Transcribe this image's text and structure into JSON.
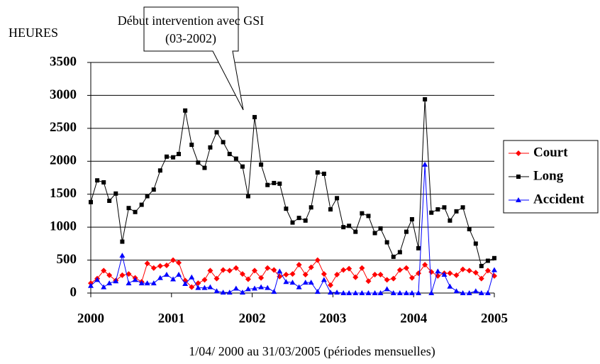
{
  "chart_data": {
    "type": "line",
    "annotation": [
      "Début intervention avec GSI",
      "(03-2002)"
    ],
    "ylabel": "HEURES",
    "xlabel": "1/04/ 2000 au 31/03/2005 (périodes mensuelles)",
    "x": [
      2000,
      2000.08,
      2000.16,
      2000.23,
      2000.31,
      2000.39,
      2000.47,
      2000.55,
      2000.63,
      2000.7,
      2000.78,
      2000.86,
      2000.94,
      2001.02,
      2001.09,
      2001.17,
      2001.25,
      2001.33,
      2001.41,
      2001.48,
      2001.56,
      2001.64,
      2001.72,
      2001.8,
      2001.88,
      2001.95,
      2002.03,
      2002.11,
      2002.19,
      2002.27,
      2002.34,
      2002.42,
      2002.5,
      2002.58,
      2002.66,
      2002.73,
      2002.81,
      2002.89,
      2002.97,
      2003.05,
      2003.13,
      2003.2,
      2003.28,
      2003.36,
      2003.44,
      2003.52,
      2003.59,
      2003.67,
      2003.75,
      2003.83,
      2003.91,
      2003.98,
      2004.06,
      2004.14,
      2004.22,
      2004.3,
      2004.38,
      2004.45,
      2004.53,
      2004.61,
      2004.69,
      2004.77,
      2004.84,
      2004.92,
      2005
    ],
    "series": [
      {
        "name": "Court",
        "color": "#ff0000",
        "marker": "diamond",
        "values": [
          150,
          220,
          340,
          270,
          190,
          270,
          290,
          230,
          170,
          450,
          380,
          410,
          420,
          500,
          460,
          190,
          90,
          150,
          200,
          340,
          220,
          350,
          340,
          380,
          290,
          210,
          340,
          230,
          380,
          350,
          250,
          280,
          290,
          430,
          280,
          390,
          500,
          290,
          120,
          280,
          350,
          370,
          240,
          380,
          180,
          280,
          280,
          200,
          220,
          350,
          380,
          230,
          300,
          430,
          320,
          260,
          300,
          300,
          270,
          360,
          340,
          310,
          220,
          340,
          260
        ]
      },
      {
        "name": "Long",
        "color": "#000000",
        "marker": "square",
        "values": [
          1380,
          1710,
          1680,
          1400,
          1510,
          780,
          1290,
          1230,
          1340,
          1470,
          1570,
          1860,
          2070,
          2060,
          2110,
          2770,
          2250,
          1980,
          1900,
          2210,
          2440,
          2290,
          2110,
          2040,
          1920,
          1470,
          2670,
          1950,
          1640,
          1670,
          1660,
          1280,
          1070,
          1140,
          1100,
          1300,
          1830,
          1810,
          1270,
          1440,
          1000,
          1020,
          930,
          1210,
          1170,
          910,
          980,
          770,
          550,
          620,
          930,
          1120,
          680,
          2940,
          1220,
          1270,
          1300,
          1100,
          1240,
          1300,
          970,
          750,
          410,
          490,
          530
        ]
      },
      {
        "name": "Accident",
        "color": "#0000ff",
        "marker": "triangle",
        "values": [
          110,
          200,
          90,
          150,
          180,
          570,
          150,
          200,
          150,
          150,
          150,
          230,
          280,
          210,
          280,
          140,
          240,
          80,
          80,
          90,
          30,
          10,
          10,
          70,
          10,
          60,
          70,
          90,
          80,
          20,
          330,
          170,
          160,
          90,
          160,
          160,
          20,
          200,
          10,
          10,
          0,
          0,
          0,
          0,
          0,
          0,
          0,
          60,
          0,
          0,
          0,
          0,
          0,
          1950,
          0,
          330,
          280,
          100,
          30,
          0,
          0,
          30,
          0,
          0,
          350
        ]
      }
    ],
    "xlim": [
      2000,
      2005
    ],
    "xticks": [
      2000,
      2001,
      2002,
      2003,
      2004,
      2005
    ],
    "ylim": [
      0,
      3500
    ],
    "yticks": [
      0,
      500,
      1000,
      1500,
      2000,
      2500,
      3000,
      3500
    ],
    "grid": true,
    "legend": "right"
  }
}
